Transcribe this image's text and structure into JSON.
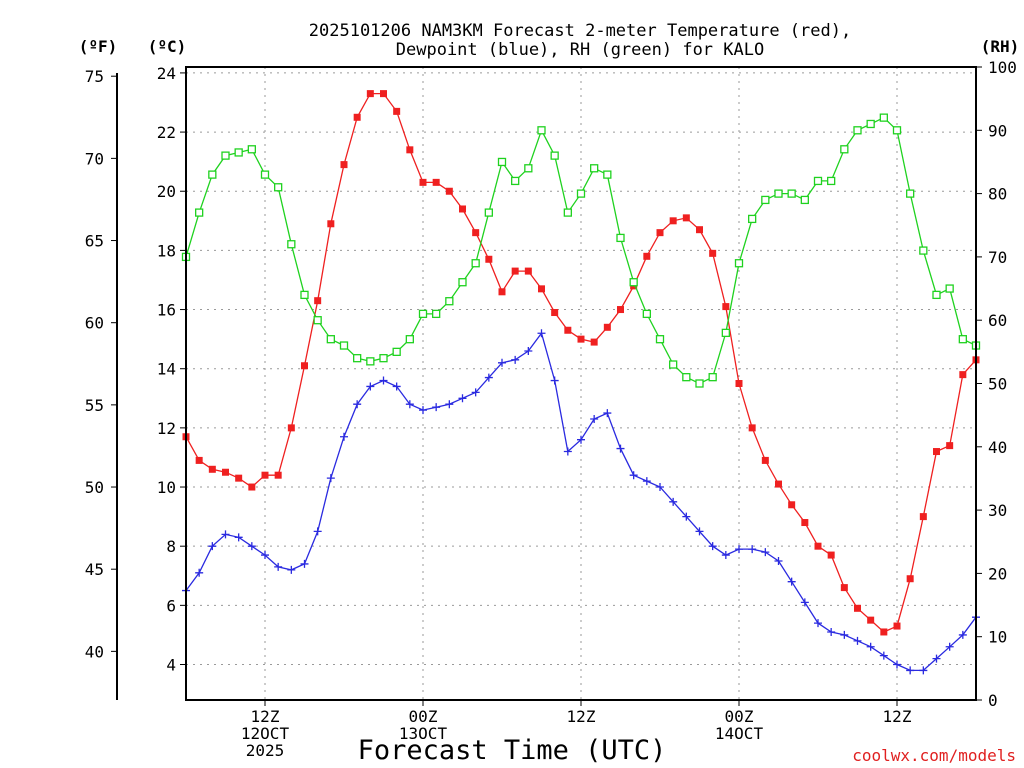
{
  "chart_data": {
    "type": "line",
    "title": "2025101206 NAM3KM Forecast 2-meter Temperature (red),",
    "title_line2": "Dewpoint (blue), RH (green) for KALO",
    "xlabel": "Forecast Time (UTC)",
    "credit": "coolwx.com/models",
    "units": {
      "f": "(ºF)",
      "c": "(ºC)",
      "rh": "(RH)"
    },
    "x_range_hours": [
      0,
      60
    ],
    "x_ticks": [
      {
        "hour": 6,
        "lines": [
          "12Z",
          "12OCT",
          "2025"
        ]
      },
      {
        "hour": 18,
        "lines": [
          "00Z",
          "13OCT"
        ]
      },
      {
        "hour": 30,
        "lines": [
          "12Z"
        ]
      },
      {
        "hour": 42,
        "lines": [
          "00Z",
          "14OCT"
        ]
      },
      {
        "hour": 54,
        "lines": [
          "12Z"
        ]
      }
    ],
    "y_c_range": [
      2.8,
      24.2
    ],
    "y_c_ticks": [
      "4",
      "6",
      "8",
      "10",
      "12",
      "14",
      "16",
      "18",
      "20",
      "22",
      "24"
    ],
    "y_f_ticks": [
      "40",
      "45",
      "50",
      "55",
      "60",
      "65",
      "70",
      "75"
    ],
    "y_rh_range": [
      0,
      100
    ],
    "y_rh_ticks": [
      "0",
      "10",
      "20",
      "30",
      "40",
      "50",
      "60",
      "70",
      "80",
      "90",
      "100"
    ],
    "grid": true,
    "series": [
      {
        "name": "2-meter Temperature",
        "unit": "C",
        "color": "#ef2020",
        "marker": "filled-square",
        "hours": [
          0,
          1,
          2,
          3,
          4,
          5,
          6,
          7,
          8,
          9,
          10,
          11,
          12,
          13,
          14,
          15,
          16,
          17,
          18,
          19,
          20,
          21,
          22,
          23,
          24,
          25,
          26,
          27,
          28,
          29,
          30,
          31,
          32,
          33,
          34,
          35,
          36,
          37,
          38,
          39,
          40,
          41,
          42,
          43,
          44,
          45,
          46,
          47,
          48,
          49,
          50,
          51,
          52,
          53,
          54,
          55,
          56,
          57,
          58,
          59,
          60
        ],
        "values": [
          11.7,
          10.9,
          10.6,
          10.5,
          10.3,
          10.0,
          10.4,
          10.4,
          12.0,
          14.1,
          16.3,
          18.9,
          20.9,
          22.5,
          23.3,
          23.3,
          22.7,
          21.4,
          20.3,
          20.3,
          20.0,
          19.4,
          18.6,
          17.7,
          16.6,
          17.3,
          17.3,
          16.7,
          15.9,
          15.3,
          15.0,
          14.9,
          15.4,
          16.0,
          16.8,
          17.8,
          18.6,
          19.0,
          19.1,
          18.7,
          17.9,
          16.1,
          13.5,
          12.0,
          10.9,
          10.1,
          9.4,
          8.8,
          8.0,
          7.7,
          6.6,
          5.9,
          5.5,
          5.1,
          5.3,
          6.9,
          9.0,
          11.2,
          11.4,
          13.8,
          14.3
        ]
      },
      {
        "name": "Dewpoint",
        "unit": "C",
        "color": "#2a2ae0",
        "marker": "plus",
        "hours": [
          0,
          1,
          2,
          3,
          4,
          5,
          6,
          7,
          8,
          9,
          10,
          11,
          12,
          13,
          14,
          15,
          16,
          17,
          18,
          19,
          20,
          21,
          22,
          23,
          24,
          25,
          26,
          27,
          28,
          29,
          30,
          31,
          32,
          33,
          34,
          35,
          36,
          37,
          38,
          39,
          40,
          41,
          42,
          43,
          44,
          45,
          46,
          47,
          48,
          49,
          50,
          51,
          52,
          53,
          54,
          55,
          56,
          57,
          58,
          59,
          60
        ],
        "values": [
          6.5,
          7.1,
          8.0,
          8.4,
          8.3,
          8.0,
          7.7,
          7.3,
          7.2,
          7.4,
          8.5,
          10.3,
          11.7,
          12.8,
          13.4,
          13.6,
          13.4,
          12.8,
          12.6,
          12.7,
          12.8,
          13.0,
          13.2,
          13.7,
          14.2,
          14.3,
          14.6,
          15.2,
          13.6,
          11.2,
          11.6,
          12.3,
          12.5,
          11.3,
          10.4,
          10.2,
          10.0,
          9.5,
          9.0,
          8.5,
          8.0,
          7.7,
          7.9,
          7.9,
          7.8,
          7.5,
          6.8,
          6.1,
          5.4,
          5.1,
          5.0,
          4.8,
          4.6,
          4.3,
          4.0,
          3.8,
          3.8,
          4.2,
          4.6,
          5.0,
          5.6
        ]
      },
      {
        "name": "RH",
        "unit": "%",
        "color": "#1fd21f",
        "marker": "open-square",
        "hours": [
          0,
          1,
          2,
          3,
          4,
          5,
          6,
          7,
          8,
          9,
          10,
          11,
          12,
          13,
          14,
          15,
          16,
          17,
          18,
          19,
          20,
          21,
          22,
          23,
          24,
          25,
          26,
          27,
          28,
          29,
          30,
          31,
          32,
          33,
          34,
          35,
          36,
          37,
          38,
          39,
          40,
          41,
          42,
          43,
          44,
          45,
          46,
          47,
          48,
          49,
          50,
          51,
          52,
          53,
          54,
          55,
          56,
          57,
          58,
          59,
          60
        ],
        "values": [
          70,
          77,
          83,
          86,
          86.5,
          87,
          83,
          81,
          72,
          64,
          60,
          57,
          56,
          54,
          53.5,
          54,
          55,
          57,
          61,
          61,
          63,
          66,
          69,
          77,
          85,
          82,
          84,
          90,
          86,
          77,
          80,
          84,
          83,
          73,
          66,
          61,
          57,
          53,
          51,
          50,
          51,
          58,
          69,
          76,
          79,
          80,
          80,
          79,
          82,
          82,
          87,
          90,
          91,
          92,
          90,
          80,
          71,
          64,
          65,
          57,
          56
        ]
      }
    ]
  }
}
